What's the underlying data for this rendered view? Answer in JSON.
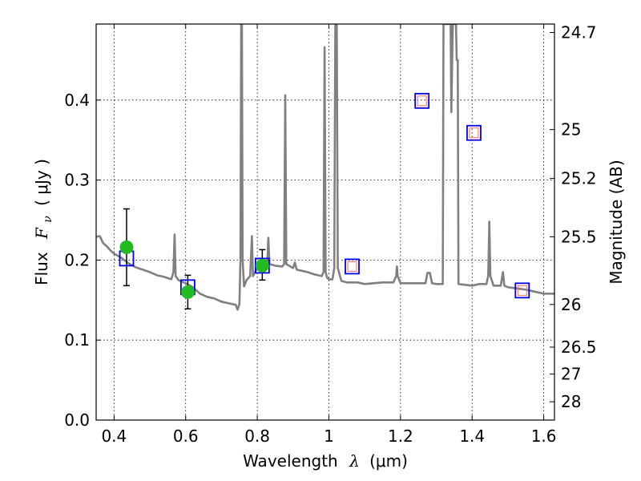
{
  "chart_data": {
    "type": "scatter",
    "title": "",
    "xlabel": "Wavelength",
    "xlabel_symbol": "λ",
    "xlabel_unit": "(μm)",
    "ylabel": "Flux",
    "ylabel_symbol": "F",
    "ylabel_subscript": "ν",
    "ylabel_unit": "( μJy )",
    "y2label": "Magnitude (AB)",
    "xlim": [
      0.35,
      1.63
    ],
    "ylim": [
      0.0,
      0.495
    ],
    "grid": true,
    "x_ticks": [
      0.4,
      0.6,
      0.8,
      1.0,
      1.2,
      1.4,
      1.6
    ],
    "x_tick_labels": [
      "0.4",
      "0.6",
      "0.8",
      "1",
      "1.2",
      "1.4",
      "1.6"
    ],
    "y_ticks": [
      0.0,
      0.1,
      0.2,
      0.3,
      0.4
    ],
    "y_tick_labels": [
      "0.0",
      "0.1",
      "0.2",
      "0.3",
      "0.4"
    ],
    "y2_ticks": [
      {
        "label": "24.7",
        "flux": 0.4845
      },
      {
        "label": "25",
        "flux": 0.3631
      },
      {
        "label": "25.2",
        "flux": 0.302
      },
      {
        "label": "25.5",
        "flux": 0.2291
      },
      {
        "label": "26",
        "flux": 0.1445
      },
      {
        "label": "26.5",
        "flux": 0.0912
      },
      {
        "label": "27",
        "flux": 0.0575
      },
      {
        "label": "28",
        "flux": 0.0229
      }
    ],
    "colors": {
      "spectrum": "#808080",
      "observed": "#22bb22",
      "model_box": "#0000ee",
      "model_inner": "#ff6666",
      "errorbar": "#000000"
    },
    "series": [
      {
        "name": "template_spectrum",
        "style": "line",
        "points": [
          [
            0.35,
            0.229
          ],
          [
            0.36,
            0.23
          ],
          [
            0.37,
            0.221
          ],
          [
            0.38,
            0.217
          ],
          [
            0.39,
            0.212
          ],
          [
            0.4,
            0.208
          ],
          [
            0.42,
            0.203
          ],
          [
            0.44,
            0.196
          ],
          [
            0.46,
            0.191
          ],
          [
            0.48,
            0.188
          ],
          [
            0.5,
            0.185
          ],
          [
            0.52,
            0.181
          ],
          [
            0.54,
            0.179
          ],
          [
            0.56,
            0.176
          ],
          [
            0.566,
            0.185
          ],
          [
            0.569,
            0.232
          ],
          [
            0.572,
            0.18
          ],
          [
            0.58,
            0.175
          ],
          [
            0.6,
            0.171
          ],
          [
            0.62,
            0.166
          ],
          [
            0.64,
            0.158
          ],
          [
            0.66,
            0.154
          ],
          [
            0.68,
            0.152
          ],
          [
            0.7,
            0.148
          ],
          [
            0.72,
            0.146
          ],
          [
            0.74,
            0.144
          ],
          [
            0.745,
            0.138
          ],
          [
            0.75,
            0.145
          ],
          [
            0.753,
            0.2
          ],
          [
            0.755,
            0.495
          ],
          [
            0.757,
            0.495
          ],
          [
            0.759,
            0.2
          ],
          [
            0.763,
            0.167
          ],
          [
            0.77,
            0.175
          ],
          [
            0.78,
            0.18
          ],
          [
            0.785,
            0.23
          ],
          [
            0.788,
            0.18
          ],
          [
            0.8,
            0.19
          ],
          [
            0.82,
            0.192
          ],
          [
            0.828,
            0.195
          ],
          [
            0.831,
            0.228
          ],
          [
            0.834,
            0.195
          ],
          [
            0.85,
            0.193
          ],
          [
            0.87,
            0.192
          ],
          [
            0.875,
            0.195
          ],
          [
            0.878,
            0.406
          ],
          [
            0.881,
            0.195
          ],
          [
            0.9,
            0.19
          ],
          [
            0.905,
            0.197
          ],
          [
            0.91,
            0.188
          ],
          [
            0.94,
            0.185
          ],
          [
            0.96,
            0.182
          ],
          [
            0.98,
            0.18
          ],
          [
            0.985,
            0.185
          ],
          [
            0.988,
            0.466
          ],
          [
            0.991,
            0.185
          ],
          [
            0.995,
            0.178
          ],
          [
            1.0,
            0.176
          ],
          [
            1.01,
            0.176
          ],
          [
            1.015,
            0.19
          ],
          [
            1.018,
            0.495
          ],
          [
            1.022,
            0.495
          ],
          [
            1.025,
            0.19
          ],
          [
            1.035,
            0.174
          ],
          [
            1.05,
            0.172
          ],
          [
            1.08,
            0.172
          ],
          [
            1.1,
            0.17
          ],
          [
            1.15,
            0.172
          ],
          [
            1.18,
            0.172
          ],
          [
            1.188,
            0.18
          ],
          [
            1.19,
            0.192
          ],
          [
            1.192,
            0.18
          ],
          [
            1.2,
            0.171
          ],
          [
            1.25,
            0.171
          ],
          [
            1.27,
            0.171
          ],
          [
            1.275,
            0.184
          ],
          [
            1.282,
            0.184
          ],
          [
            1.288,
            0.171
          ],
          [
            1.3,
            0.17
          ],
          [
            1.318,
            0.17
          ],
          [
            1.32,
            0.495
          ],
          [
            1.34,
            0.495
          ],
          [
            1.342,
            0.385
          ],
          [
            1.346,
            0.495
          ],
          [
            1.355,
            0.495
          ],
          [
            1.357,
            0.45
          ],
          [
            1.36,
            0.45
          ],
          [
            1.362,
            0.17
          ],
          [
            1.4,
            0.168
          ],
          [
            1.42,
            0.17
          ],
          [
            1.44,
            0.17
          ],
          [
            1.445,
            0.18
          ],
          [
            1.448,
            0.248
          ],
          [
            1.451,
            0.18
          ],
          [
            1.46,
            0.168
          ],
          [
            1.48,
            0.168
          ],
          [
            1.486,
            0.185
          ],
          [
            1.49,
            0.168
          ],
          [
            1.5,
            0.166
          ],
          [
            1.55,
            0.163
          ],
          [
            1.6,
            0.158
          ],
          [
            1.63,
            0.158
          ]
        ]
      },
      {
        "name": "observed_photometry",
        "style": "circle",
        "points": [
          {
            "x": 0.435,
            "y": 0.216,
            "yerr_low": 0.168,
            "yerr_high": 0.264
          },
          {
            "x": 0.606,
            "y": 0.16,
            "yerr_low": 0.139,
            "yerr_high": 0.181
          },
          {
            "x": 0.814,
            "y": 0.193,
            "yerr_low": 0.175,
            "yerr_high": 0.213
          }
        ]
      },
      {
        "name": "model_photometry",
        "style": "square",
        "points": [
          {
            "x": 0.435,
            "y": 0.202
          },
          {
            "x": 0.606,
            "y": 0.166
          },
          {
            "x": 0.814,
            "y": 0.193
          },
          {
            "x": 1.065,
            "y": 0.192,
            "inner": true
          },
          {
            "x": 1.26,
            "y": 0.399,
            "inner": true
          },
          {
            "x": 1.405,
            "y": 0.359,
            "inner": true
          },
          {
            "x": 1.54,
            "y": 0.162,
            "inner": true
          }
        ]
      }
    ]
  }
}
